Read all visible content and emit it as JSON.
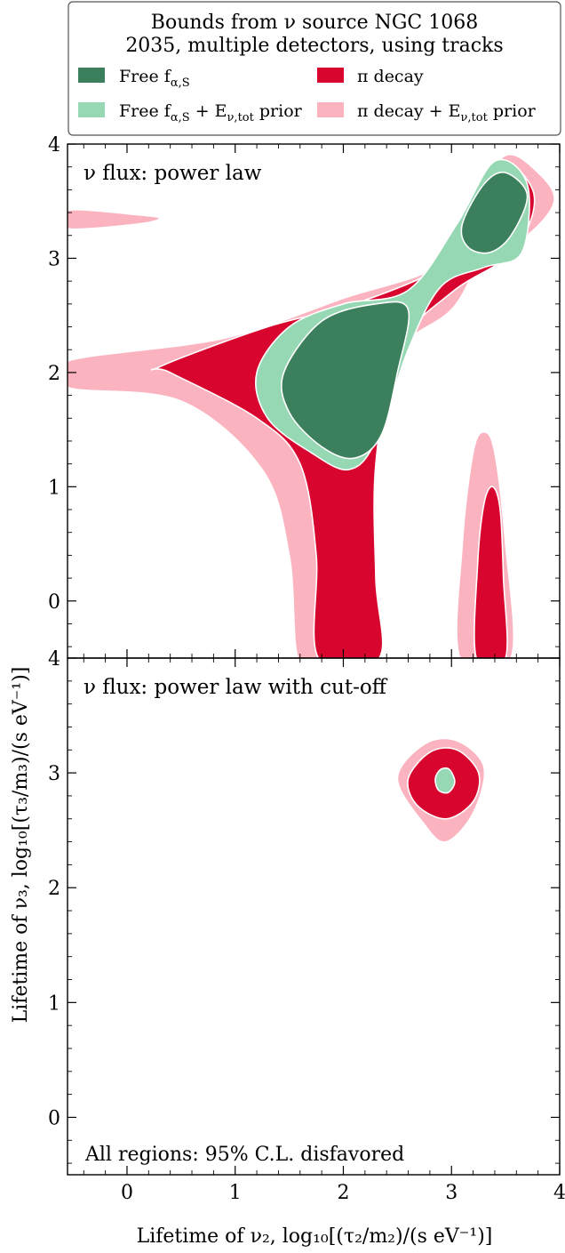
{
  "figure": {
    "legend": {
      "title_line1": "Bounds from ν source NGC 1068",
      "title_line2": "2035, multiple detectors, using tracks",
      "entries": [
        {
          "key": "free",
          "label": "Free f",
          "sub": "α,S",
          "suffix": "",
          "color": "#3b7f5c"
        },
        {
          "key": "pi",
          "label": "π decay",
          "sub": "",
          "suffix": "",
          "color": "#d8062e"
        },
        {
          "key": "free_prior",
          "label": "Free f",
          "sub": "α,S",
          "suffix": " + E",
          "suffix_sub": "ν,tot",
          "suffix_tail": " prior",
          "color": "#96d7b4"
        },
        {
          "key": "pi_prior",
          "label": "π decay + E",
          "sub": "ν,tot",
          "suffix": " prior",
          "color": "#fbb3bf"
        }
      ]
    },
    "ylabel": "Lifetime of ν₃, log₁₀[(τ₃/m₃)/(s eV⁻¹)]",
    "xlabel": "Lifetime of ν₂, log₁₀[(τ₂/m₂)/(s eV⁻¹)]",
    "footnote": "All regions: 95% C.L. disfavored"
  },
  "chart_data": [
    {
      "type": "contour",
      "panel_label": "ν flux: power law",
      "xlim": [
        -0.55,
        4.0
      ],
      "ylim": [
        -0.5,
        4.0
      ],
      "xticks": [
        "0",
        "1",
        "2",
        "3",
        "4"
      ],
      "yticks": [
        "0",
        "1",
        "2",
        "3",
        "4"
      ],
      "regions": [
        {
          "series": "π decay + E_ν,tot prior",
          "color": "#fbb3bf",
          "polygon": [
            [
              -0.55,
              2.1
            ],
            [
              0.9,
              2.3
            ],
            [
              2.0,
              2.65
            ],
            [
              2.9,
              2.95
            ],
            [
              3.2,
              3.5
            ],
            [
              3.5,
              3.9
            ],
            [
              3.8,
              3.75
            ],
            [
              3.95,
              3.5
            ],
            [
              3.7,
              3.2
            ],
            [
              3.3,
              3.0
            ],
            [
              3.0,
              2.55
            ],
            [
              2.5,
              2.2
            ],
            [
              2.1,
              1.5
            ],
            [
              1.95,
              0.9
            ],
            [
              1.9,
              0.1
            ],
            [
              1.82,
              -0.5
            ],
            [
              1.58,
              -0.5
            ],
            [
              1.5,
              0.4
            ],
            [
              1.25,
              1.15
            ],
            [
              0.5,
              1.75
            ],
            [
              -0.55,
              1.87
            ]
          ]
        },
        {
          "series": "π decay + E_ν,tot prior",
          "color": "#fbb3bf",
          "polygon": [
            [
              -0.55,
              3.42
            ],
            [
              0.1,
              3.38
            ],
            [
              0.3,
              3.35
            ],
            [
              0.1,
              3.3
            ],
            [
              -0.55,
              3.26
            ]
          ]
        },
        {
          "series": "π decay + E_ν,tot prior",
          "color": "#fbb3bf",
          "polygon": [
            [
              3.08,
              -0.5
            ],
            [
              3.1,
              0.5
            ],
            [
              3.2,
              1.3
            ],
            [
              3.3,
              1.48
            ],
            [
              3.4,
              1.3
            ],
            [
              3.5,
              0.5
            ],
            [
              3.55,
              -0.5
            ]
          ]
        },
        {
          "series": "π decay",
          "color": "#d8062e",
          "polygon": [
            [
              0.3,
              2.05
            ],
            [
              1.3,
              2.4
            ],
            [
              2.1,
              2.6
            ],
            [
              2.9,
              2.92
            ],
            [
              3.1,
              3.25
            ],
            [
              3.3,
              3.6
            ],
            [
              3.5,
              3.85
            ],
            [
              3.75,
              3.6
            ],
            [
              3.72,
              3.3
            ],
            [
              3.5,
              3.0
            ],
            [
              3.0,
              2.7
            ],
            [
              2.5,
              2.2
            ],
            [
              2.3,
              1.2
            ],
            [
              2.3,
              0.2
            ],
            [
              2.33,
              -0.5
            ],
            [
              1.77,
              -0.5
            ],
            [
              1.75,
              0.4
            ],
            [
              1.6,
              1.2
            ],
            [
              1.2,
              1.6
            ],
            [
              0.4,
              2.0
            ]
          ]
        },
        {
          "series": "π decay",
          "color": "#d8062e",
          "polygon": [
            [
              3.23,
              -0.5
            ],
            [
              3.24,
              0.3
            ],
            [
              3.3,
              0.85
            ],
            [
              3.38,
              1.0
            ],
            [
              3.45,
              0.8
            ],
            [
              3.48,
              0.2
            ],
            [
              3.5,
              -0.5
            ]
          ]
        },
        {
          "series": "Free f_α,S + E_ν,tot prior",
          "color": "#96d7b4",
          "polygon": [
            [
              1.2,
              2.0
            ],
            [
              1.5,
              2.4
            ],
            [
              2.0,
              2.6
            ],
            [
              2.6,
              2.72
            ],
            [
              3.05,
              3.3
            ],
            [
              3.4,
              3.85
            ],
            [
              3.7,
              3.65
            ],
            [
              3.65,
              3.05
            ],
            [
              3.3,
              2.92
            ],
            [
              2.9,
              2.75
            ],
            [
              2.6,
              2.2
            ],
            [
              2.3,
              1.4
            ],
            [
              2.05,
              1.15
            ],
            [
              1.7,
              1.3
            ],
            [
              1.3,
              1.6
            ]
          ]
        },
        {
          "series": "Free f_α,S",
          "color": "#3b7f5c",
          "polygon": [
            [
              1.45,
              2.0
            ],
            [
              1.8,
              2.45
            ],
            [
              2.3,
              2.6
            ],
            [
              2.6,
              2.55
            ],
            [
              2.5,
              2.0
            ],
            [
              2.35,
              1.45
            ],
            [
              2.1,
              1.25
            ],
            [
              1.8,
              1.35
            ],
            [
              1.5,
              1.65
            ]
          ]
        },
        {
          "series": "Free f_α,S",
          "color": "#3b7f5c",
          "polygon": [
            [
              3.1,
              3.3
            ],
            [
              3.3,
              3.65
            ],
            [
              3.5,
              3.75
            ],
            [
              3.7,
              3.55
            ],
            [
              3.55,
              3.2
            ],
            [
              3.35,
              3.05
            ],
            [
              3.15,
              3.1
            ]
          ]
        }
      ]
    },
    {
      "type": "contour",
      "panel_label": "ν flux: power law with cut-off",
      "xlim": [
        -0.55,
        4.0
      ],
      "ylim": [
        -0.5,
        4.0
      ],
      "xticks": [
        "0",
        "1",
        "2",
        "3",
        "4"
      ],
      "yticks": [
        "0",
        "1",
        "2",
        "3",
        "4"
      ],
      "regions": [
        {
          "series": "π decay + E_ν,tot prior",
          "color": "#fbb3bf",
          "polygon": [
            [
              2.5,
              2.95
            ],
            [
              2.75,
              3.25
            ],
            [
              3.05,
              3.28
            ],
            [
              3.3,
              3.05
            ],
            [
              3.2,
              2.65
            ],
            [
              2.95,
              2.4
            ],
            [
              2.75,
              2.55
            ]
          ]
        },
        {
          "series": "π decay",
          "color": "#d8062e",
          "polygon": [
            [
              2.6,
              2.95
            ],
            [
              2.8,
              3.18
            ],
            [
              3.05,
              3.2
            ],
            [
              3.25,
              3.0
            ],
            [
              3.2,
              2.75
            ],
            [
              2.95,
              2.6
            ],
            [
              2.68,
              2.72
            ]
          ]
        },
        {
          "series": "Free f_α,S + E_ν,tot prior",
          "color": "#96d7b4",
          "polygon": [
            [
              2.85,
              2.95
            ],
            [
              2.9,
              3.03
            ],
            [
              2.98,
              3.03
            ],
            [
              3.03,
              2.92
            ],
            [
              2.97,
              2.83
            ],
            [
              2.88,
              2.85
            ]
          ]
        }
      ]
    }
  ]
}
